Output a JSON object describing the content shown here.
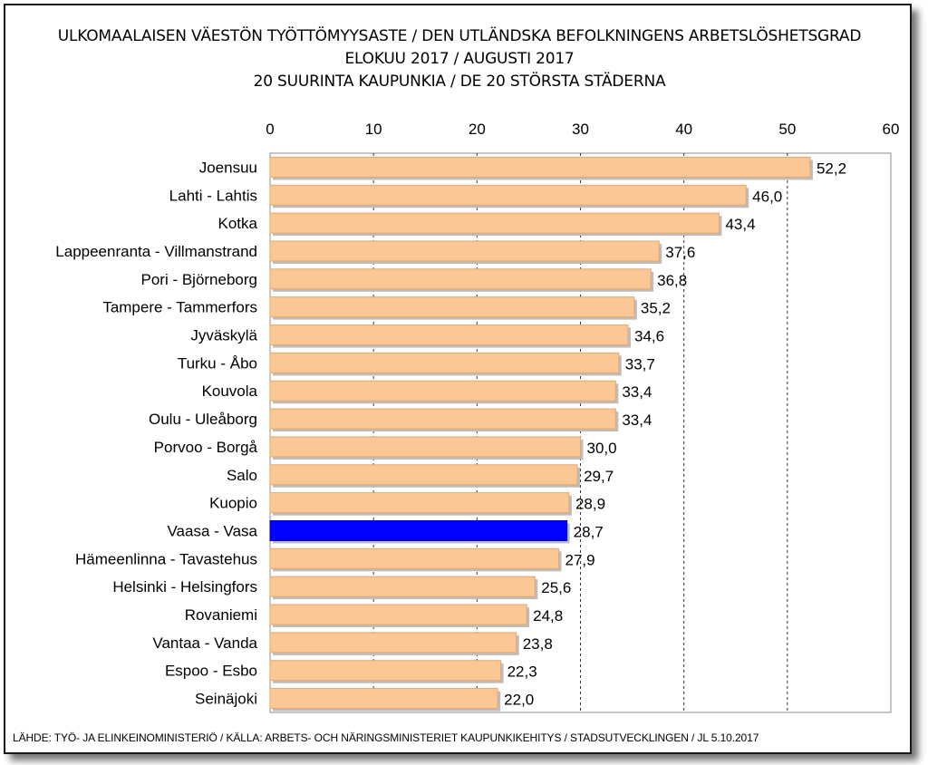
{
  "chart_data": {
    "type": "bar",
    "orientation": "horizontal",
    "title_lines": [
      "ULKOMAALAISEN VÄESTÖN TYÖTTÖMYYSASTE / DEN UTLÄNDSKA BEFOLKNINGENS ARBETSLÖSHETSGRAD",
      "ELOKUU 2017 / AUGUSTI 2017",
      "20 SUURINTA KAUPUNKIA / DE 20 STÖRSTA STÄDERNA"
    ],
    "xlim": [
      0,
      60
    ],
    "x_ticks": [
      "0",
      "10",
      "20",
      "30",
      "40",
      "50",
      "60"
    ],
    "x_axis_position": "top",
    "grid": "vertical dashed",
    "categories": [
      "Joensuu",
      "Lahti - Lahtis",
      "Kotka",
      "Lappeenranta - Villmanstrand",
      "Pori - Björneborg",
      "Tampere - Tammerfors",
      "Jyväskylä",
      "Turku - Åbo",
      "Kouvola",
      "Oulu - Uleåborg",
      "Porvoo - Borgå",
      "Salo",
      "Kuopio",
      "Vaasa - Vasa",
      "Hämeenlinna - Tavastehus",
      "Helsinki - Helsingfors",
      "Rovaniemi",
      "Vantaa - Vanda",
      "Espoo - Esbo",
      "Seinäjoki"
    ],
    "values": [
      52.2,
      46.0,
      43.4,
      37.6,
      36.8,
      35.2,
      34.6,
      33.7,
      33.4,
      33.4,
      30.0,
      29.7,
      28.9,
      28.7,
      27.9,
      25.6,
      24.8,
      23.8,
      22.3,
      22.0
    ],
    "value_labels": [
      "52,2",
      "46,0",
      "43,4",
      "37,6",
      "36,8",
      "35,2",
      "34,6",
      "33,7",
      "33,4",
      "33,4",
      "30,0",
      "29,7",
      "28,9",
      "28,7",
      "27,9",
      "25,6",
      "24,8",
      "23,8",
      "22,3",
      "22,0"
    ],
    "highlight_category": "Vaasa - Vasa",
    "colors": {
      "bar": "#fbc794",
      "bar_edge": "#e9a66c",
      "highlight": "#0000ff"
    }
  },
  "source_note": "LÄHDE: TYÖ- JA ELINKEINOMINISTERIÖ  / KÄLLA: ARBETS- OCH NÄRINGSMINISTERIET  KAUPUNKIKEHITYS  / STADSUTVECKLINGEN / JL 5.10.2017"
}
